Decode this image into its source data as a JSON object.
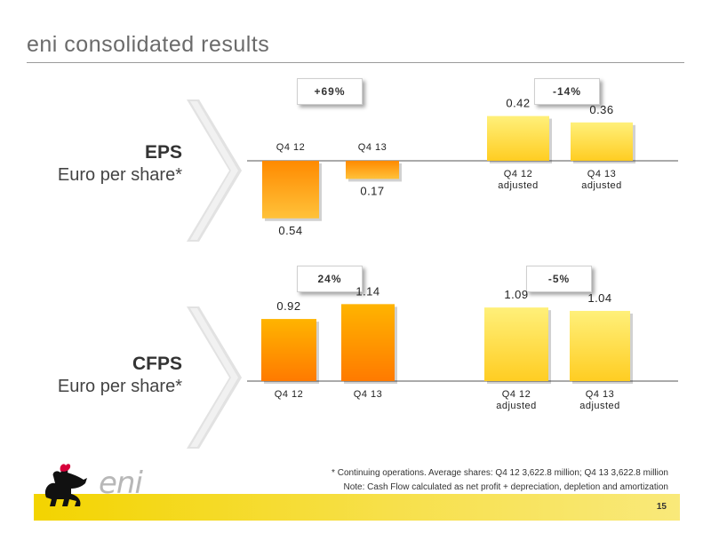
{
  "page": {
    "title": "eni consolidated results",
    "page_number": "15",
    "logo_text": "eni",
    "footnotes": [
      "* Continuing operations. Average shares: Q4 12 3,622.8 million; Q4 13 3,622.8 million",
      "Note: Cash Flow calculated as net profit + depreciation, depletion and amortization"
    ]
  },
  "colors": {
    "orange_top": "#ffb400",
    "orange_bottom": "#ff7a00",
    "yellow_top": "#fff07a",
    "yellow_bottom": "#ffcd22",
    "band": "#f3d400"
  },
  "chart_data": [
    {
      "type": "bar",
      "title": "EPS",
      "subtitle": "Euro per share*",
      "groups": [
        {
          "badge": "+69%",
          "categories": [
            "Q4 12",
            "Q4 13"
          ],
          "values": [
            -0.54,
            -0.17
          ],
          "value_labels": [
            "0.54",
            "0.17"
          ],
          "style": "orange"
        },
        {
          "badge": "-14%",
          "categories": [
            "Q4 12\nadjusted",
            "Q4 13\nadjusted"
          ],
          "values": [
            0.42,
            0.36
          ],
          "value_labels": [
            "0.42",
            "0.36"
          ],
          "style": "yellow"
        }
      ]
    },
    {
      "type": "bar",
      "title": "CFPS",
      "subtitle": "Euro per share*",
      "groups": [
        {
          "badge": "24%",
          "categories": [
            "Q4 12",
            "Q4 13"
          ],
          "values": [
            0.92,
            1.14
          ],
          "value_labels": [
            "0.92",
            "1.14"
          ],
          "style": "orange"
        },
        {
          "badge": "-5%",
          "categories": [
            "Q4 12\nadjusted",
            "Q4 13\nadjusted"
          ],
          "values": [
            1.09,
            1.04
          ],
          "value_labels": [
            "1.09",
            "1.04"
          ],
          "style": "yellow"
        }
      ]
    }
  ]
}
